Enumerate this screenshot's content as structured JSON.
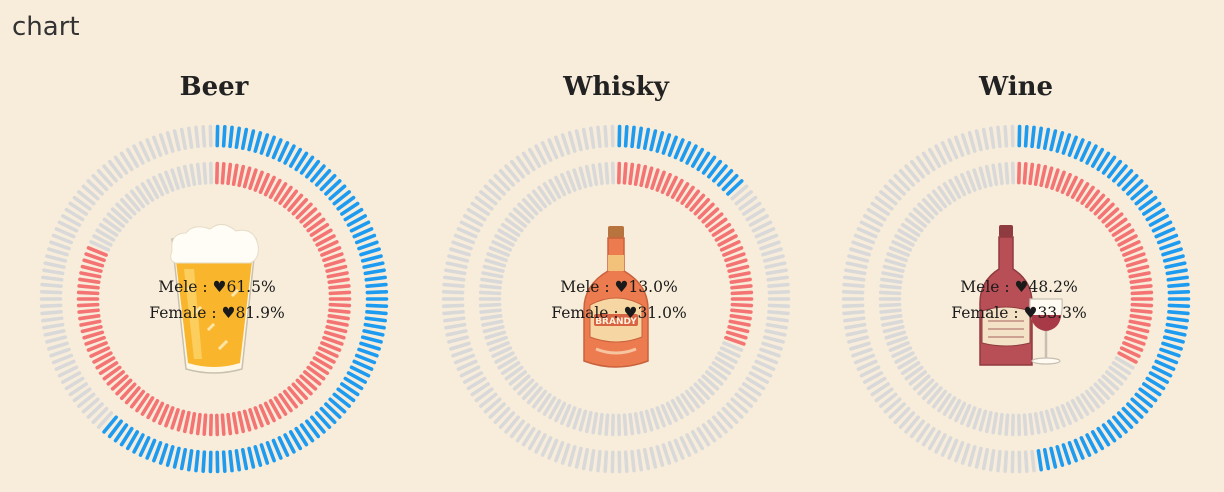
{
  "page": {
    "title": "chart"
  },
  "colors": {
    "background": "#f8eddb",
    "male": "#1d9bf0",
    "female": "#f47474",
    "empty": "#d9d9d9"
  },
  "chart_data": [
    {
      "type": "donut",
      "title": "Beer",
      "icon": "beer-glass-icon",
      "series": [
        {
          "name": "Mele",
          "label": "Mele  : ",
          "value": 61.5,
          "display": "61.5%",
          "ring": "outer"
        },
        {
          "name": "Female",
          "label": "Female : ",
          "value": 81.9,
          "display": "81.9%",
          "ring": "inner"
        }
      ]
    },
    {
      "type": "donut",
      "title": "Whisky",
      "icon": "brandy-bottle-icon",
      "series": [
        {
          "name": "Mele",
          "label": "Mele  : ",
          "value": 13.0,
          "display": "13.0%",
          "ring": "outer"
        },
        {
          "name": "Female",
          "label": "Female : ",
          "value": 31.0,
          "display": "31.0%",
          "ring": "inner"
        }
      ]
    },
    {
      "type": "donut",
      "title": "Wine",
      "icon": "wine-bottle-and-glass-icon",
      "series": [
        {
          "name": "Mele",
          "label": "Mele  : ",
          "value": 48.2,
          "display": "48.2%",
          "ring": "outer"
        },
        {
          "name": "Female",
          "label": "Female : ",
          "value": 33.3,
          "display": "33.3%",
          "ring": "inner"
        }
      ]
    }
  ]
}
